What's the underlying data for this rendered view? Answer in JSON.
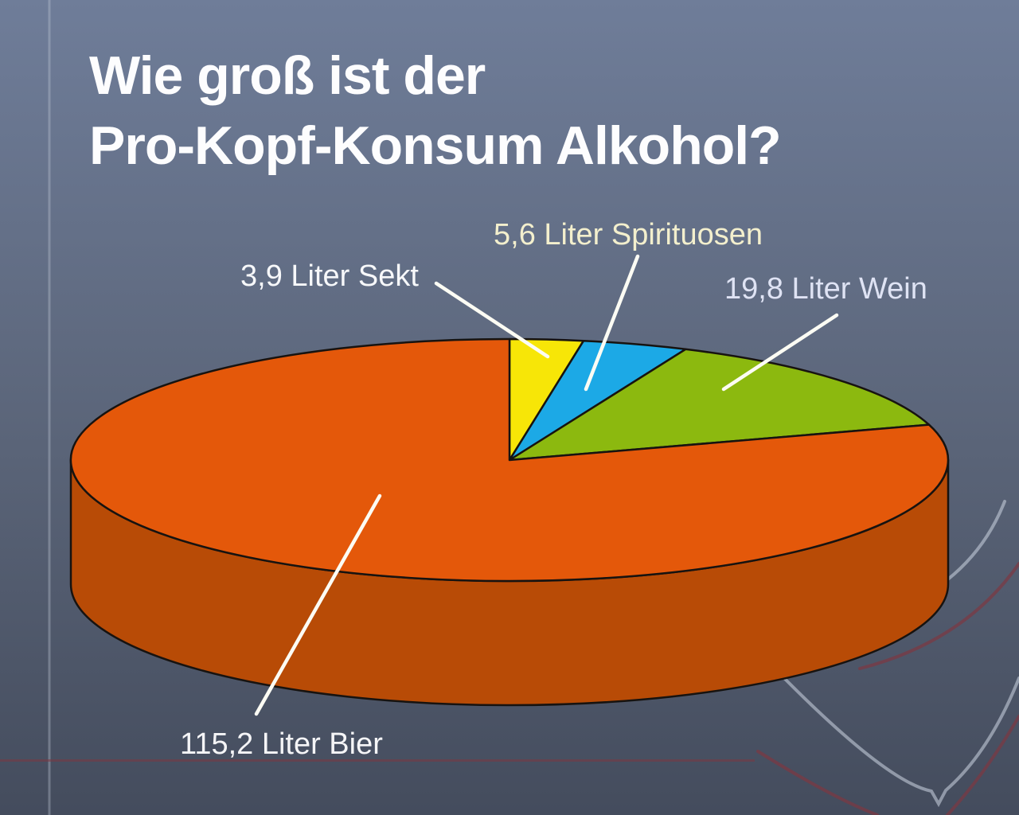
{
  "slide": {
    "title_line1": "Wie groß ist der",
    "title_line2": "Pro-Kopf-Konsum Alkohol?",
    "title_color": "#fdfdfe"
  },
  "background": {
    "gradient_top": "#6f7d99",
    "gradient_mid": "#5a6478",
    "gradient_bottom": "#444c5d",
    "decor_light_line": "#c3cbd8",
    "decor_red_line": "#7d3741"
  },
  "chart_data": {
    "type": "pie",
    "style": "3d",
    "title": "Wie groß ist der Pro-Kopf-Konsum Alkohol?",
    "start_angle": "12-oclock",
    "direction": "clockwise",
    "legend": "none",
    "outline_color": "#171310",
    "leader_line_color": "#fcfcf4",
    "slices": [
      {
        "name": "Sekt",
        "value": 3.9,
        "unit": "Liter",
        "label": "3,9 Liter Sekt",
        "color": "#f7e607",
        "label_color": "#f7f8fa"
      },
      {
        "name": "Spirituosen",
        "value": 5.6,
        "unit": "Liter",
        "label": "5,6 Liter Spirituosen",
        "color": "#1ca9e6",
        "label_color": "#f3efcd"
      },
      {
        "name": "Wein",
        "value": 19.8,
        "unit": "Liter",
        "label": "19,8 Liter Wein",
        "color": "#8cb90f",
        "label_color": "#dfe3f4"
      },
      {
        "name": "Bier",
        "value": 115.2,
        "unit": "Liter",
        "label": "115,2 Liter Bier",
        "color": "#e4580a",
        "side_color": "#b84b06",
        "label_color": "#f5f5f7"
      }
    ]
  }
}
